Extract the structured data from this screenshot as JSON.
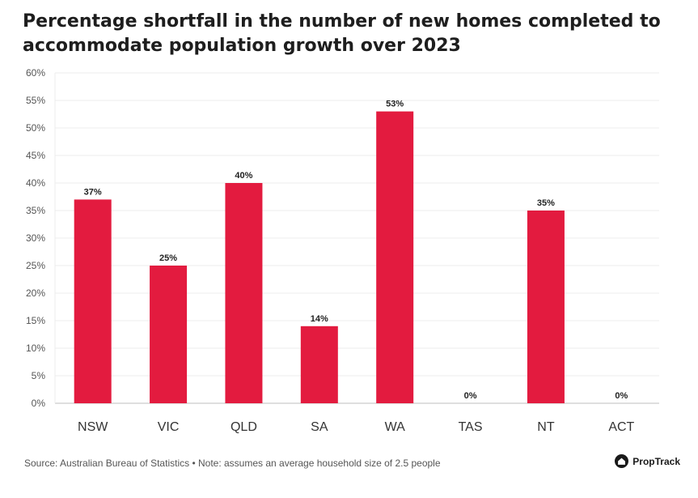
{
  "chart_data": {
    "type": "bar",
    "title": "Percentage shortfall in the number of new homes completed to accommodate population growth over 2023",
    "categories": [
      "NSW",
      "VIC",
      "QLD",
      "SA",
      "WA",
      "TAS",
      "NT",
      "ACT"
    ],
    "values": [
      37,
      25,
      40,
      14,
      53,
      0,
      35,
      0
    ],
    "value_labels": [
      "37%",
      "25%",
      "40%",
      "14%",
      "53%",
      "0%",
      "35%",
      "0%"
    ],
    "y_ticks": [
      "0%",
      "5%",
      "10%",
      "15%",
      "20%",
      "25%",
      "30%",
      "35%",
      "40%",
      "45%",
      "50%",
      "55%",
      "60%"
    ],
    "ylim": [
      0,
      60
    ],
    "grid": true,
    "bar_color": "#e31b3f",
    "xlabel": "",
    "ylabel": ""
  },
  "footer": {
    "source": "Source: Australian Bureau of Statistics • Note: assumes an average household size of 2.5 people"
  },
  "brand": {
    "name": "PropTrack",
    "icon": "proptrack-logo-icon"
  }
}
